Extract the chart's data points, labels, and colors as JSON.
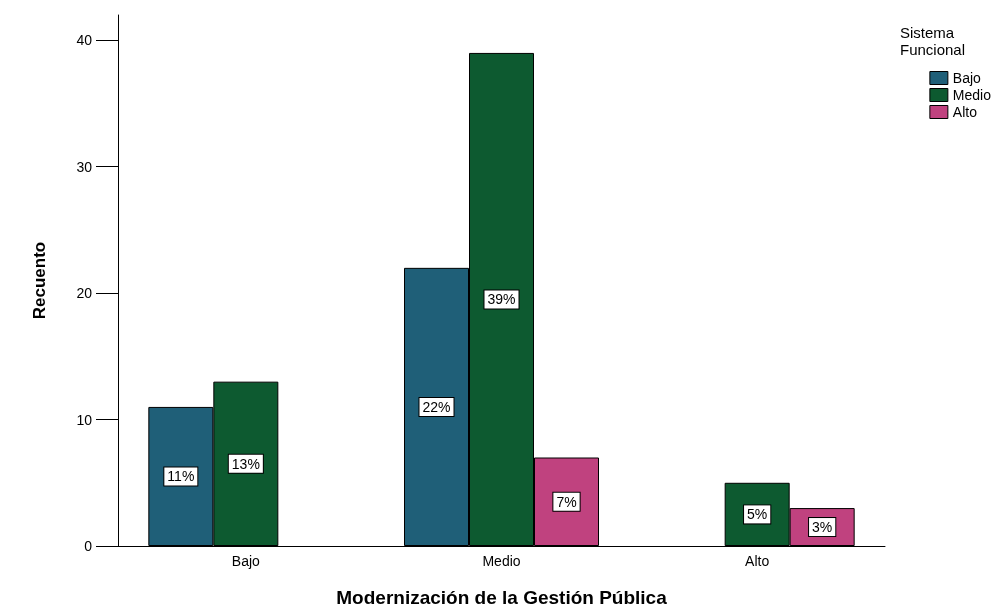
{
  "chart_data": {
    "type": "bar",
    "xlabel": "Modernización de la Gestión Pública",
    "ylabel": "Recuento",
    "legend_title": "Sistema Funcional",
    "categories": [
      "Bajo",
      "Medio",
      "Alto"
    ],
    "series": [
      {
        "name": "Bajo",
        "color": "#1f5f78",
        "values": [
          11,
          22,
          null
        ],
        "value_labels": [
          "11%",
          "22%",
          null
        ]
      },
      {
        "name": "Medio",
        "color": "#0d5a30",
        "values": [
          13,
          39,
          5
        ],
        "value_labels": [
          "13%",
          "39%",
          "5%"
        ]
      },
      {
        "name": "Alto",
        "color": "#c0427f",
        "values": [
          null,
          7,
          3
        ],
        "value_labels": [
          null,
          "7%",
          "3%"
        ]
      }
    ],
    "ylim": [
      0,
      42
    ],
    "yticks": [
      0,
      10,
      20,
      30,
      40
    ],
    "grid": false,
    "legend": "top right"
  }
}
